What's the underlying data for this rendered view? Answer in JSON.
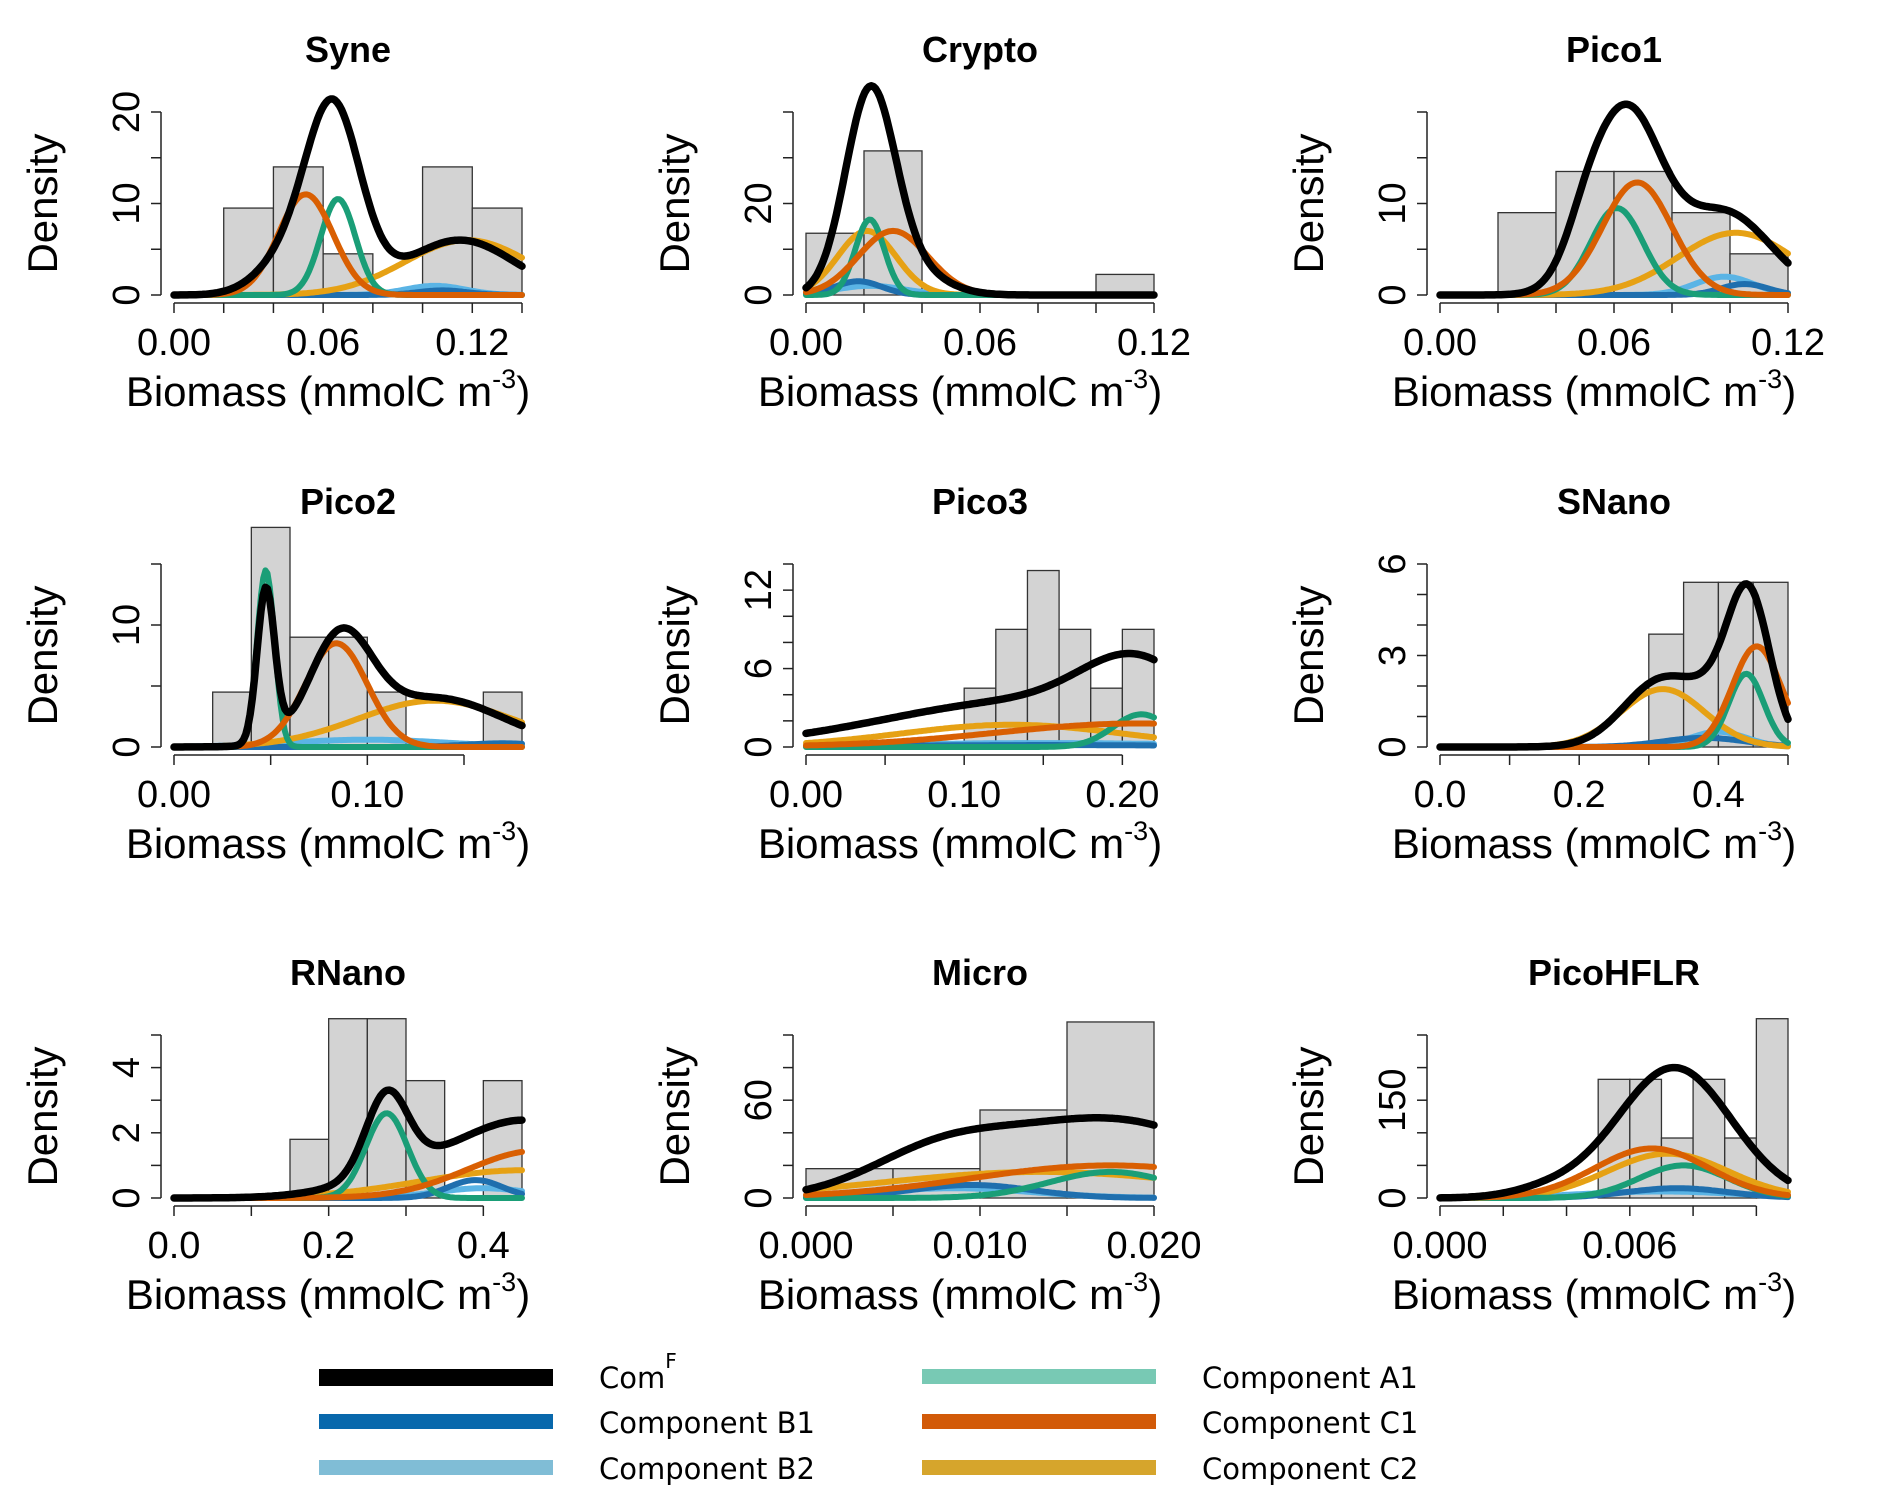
{
  "figure": {
    "panel_count": 9,
    "layout": "3x3 grid with legend below"
  },
  "colors": {
    "histogram_fill": "#d3d3d3",
    "histogram_stroke": "#333333",
    "ComF": "#000000",
    "B1": "#1f6fae",
    "B2": "#5ab4e5",
    "A1": "#1a9e77",
    "C1": "#d95f02",
    "C2": "#e6a114"
  },
  "legend": {
    "items": [
      {
        "key": "ComF",
        "label": "Com",
        "sup": "F",
        "color": "#000000"
      },
      {
        "key": "B1",
        "label": "Component B1",
        "sup": "",
        "color": "#0868ac"
      },
      {
        "key": "B2",
        "label": "Component B2",
        "sup": "",
        "color": "#80bdd6"
      },
      {
        "key": "A1",
        "label": "Component A1",
        "sup": "",
        "color": "#78c9b4"
      },
      {
        "key": "C1",
        "label": "Component C1",
        "sup": "",
        "color": "#d25a08"
      },
      {
        "key": "C2",
        "label": "Component C2",
        "sup": "",
        "color": "#d6a52c"
      }
    ]
  },
  "chart_data": [
    {
      "type": "histogram+density",
      "title": "Syne",
      "xlabel": "Biomass (mmolC  m",
      "xlabel_sup": "-3",
      "xlabel_close": ")",
      "ylabel": "Density",
      "xlim": [
        0,
        0.14
      ],
      "ylim": [
        0,
        20
      ],
      "xticks": [
        0,
        0.02,
        0.04,
        0.06,
        0.08,
        0.1,
        0.12,
        0.14
      ],
      "xtick_labels": [
        {
          "v": 0,
          "t": "0.00"
        },
        {
          "v": 0.06,
          "t": "0.06"
        },
        {
          "v": 0.12,
          "t": "0.12"
        }
      ],
      "yticks": [
        0,
        5,
        10,
        15,
        20
      ],
      "ytick_labels": [
        {
          "v": 0,
          "t": "0"
        },
        {
          "v": 10,
          "t": "10"
        },
        {
          "v": 20,
          "t": "20"
        }
      ],
      "bins": [
        [
          0.02,
          0.04,
          9.5
        ],
        [
          0.04,
          0.06,
          14
        ],
        [
          0.06,
          0.08,
          4.5
        ],
        [
          0.08,
          0.1,
          0
        ],
        [
          0.1,
          0.12,
          14
        ],
        [
          0.12,
          0.14,
          9.5
        ]
      ],
      "components": {
        "C1": [
          [
            11.0,
            0.053,
            0.011
          ]
        ],
        "A1": [
          [
            10.5,
            0.066,
            0.007
          ]
        ],
        "C2": [
          [
            6.0,
            0.118,
            0.025
          ]
        ],
        "B2": [
          [
            1.0,
            0.105,
            0.012
          ]
        ],
        "B1": [
          [
            0.5,
            0.108,
            0.01
          ]
        ]
      },
      "comF": [
        [
          20.0,
          0.064,
          0.011
        ],
        [
          3.5,
          0.045,
          0.012
        ],
        [
          6.0,
          0.115,
          0.022
        ]
      ]
    },
    {
      "type": "histogram+density",
      "title": "Crypto",
      "xlabel": "Biomass (mmolC  m",
      "xlabel_sup": "-3",
      "xlabel_close": ")",
      "ylabel": "Density",
      "xlim": [
        0,
        0.12
      ],
      "ylim": [
        0,
        40
      ],
      "xticks": [
        0,
        0.02,
        0.04,
        0.06,
        0.08,
        0.1,
        0.12
      ],
      "xtick_labels": [
        {
          "v": 0,
          "t": "0.00"
        },
        {
          "v": 0.06,
          "t": "0.06"
        },
        {
          "v": 0.12,
          "t": "0.12"
        }
      ],
      "yticks": [
        0,
        10,
        20,
        30,
        40
      ],
      "ytick_labels": [
        {
          "v": 0,
          "t": "0"
        },
        {
          "v": 20,
          "t": "20"
        }
      ],
      "bins": [
        [
          0.0,
          0.02,
          13.5
        ],
        [
          0.02,
          0.04,
          31.5
        ],
        [
          0.04,
          0.06,
          0
        ],
        [
          0.06,
          0.08,
          0
        ],
        [
          0.08,
          0.1,
          0
        ],
        [
          0.1,
          0.12,
          4.5
        ]
      ],
      "components": {
        "A1": [
          [
            16.5,
            0.022,
            0.005
          ]
        ],
        "C2": [
          [
            14.0,
            0.021,
            0.01
          ]
        ],
        "C1": [
          [
            14.0,
            0.03,
            0.012
          ]
        ],
        "B1": [
          [
            3.0,
            0.018,
            0.008
          ]
        ],
        "B2": [
          [
            2.0,
            0.022,
            0.012
          ]
        ]
      },
      "comF": [
        [
          42.0,
          0.022,
          0.0085
        ],
        [
          6.0,
          0.034,
          0.012
        ]
      ]
    },
    {
      "type": "histogram+density",
      "title": "Pico1",
      "xlabel": "Biomass (mmolC  m",
      "xlabel_sup": "-3",
      "xlabel_close": ")",
      "ylabel": "Density",
      "xlim": [
        0,
        0.12
      ],
      "ylim": [
        0,
        20
      ],
      "xticks": [
        0,
        0.02,
        0.04,
        0.06,
        0.08,
        0.1,
        0.12
      ],
      "xtick_labels": [
        {
          "v": 0,
          "t": "0.00"
        },
        {
          "v": 0.06,
          "t": "0.06"
        },
        {
          "v": 0.12,
          "t": "0.12"
        }
      ],
      "yticks": [
        0,
        5,
        10,
        15,
        20
      ],
      "ytick_labels": [
        {
          "v": 0,
          "t": "0"
        },
        {
          "v": 10,
          "t": "10"
        }
      ],
      "bins": [
        [
          0.02,
          0.04,
          9
        ],
        [
          0.04,
          0.06,
          13.5
        ],
        [
          0.06,
          0.08,
          13.5
        ],
        [
          0.08,
          0.1,
          9
        ],
        [
          0.1,
          0.12,
          4.5
        ]
      ],
      "components": {
        "A1": [
          [
            9.5,
            0.061,
            0.009
          ]
        ],
        "C1": [
          [
            12.3,
            0.068,
            0.012
          ]
        ],
        "C2": [
          [
            6.8,
            0.102,
            0.02
          ]
        ],
        "B2": [
          [
            2.0,
            0.098,
            0.01
          ]
        ],
        "B1": [
          [
            1.2,
            0.105,
            0.008
          ]
        ]
      },
      "comF": [
        [
          19.5,
          0.064,
          0.012
        ],
        [
          9.0,
          0.098,
          0.016
        ],
        [
          3.0,
          0.05,
          0.007
        ]
      ]
    },
    {
      "type": "histogram+density",
      "title": "Pico2",
      "xlabel": "Biomass (mmolC  m",
      "xlabel_sup": "-3",
      "xlabel_close": ")",
      "ylabel": "Density",
      "xlim": [
        0,
        0.18
      ],
      "ylim": [
        0,
        15
      ],
      "xticks": [
        0,
        0.05,
        0.1,
        0.15
      ],
      "xtick_labels": [
        {
          "v": 0,
          "t": "0.00"
        },
        {
          "v": 0.1,
          "t": "0.10"
        }
      ],
      "yticks": [
        0,
        5,
        10,
        15
      ],
      "ytick_labels": [
        {
          "v": 0,
          "t": "0"
        },
        {
          "v": 10,
          "t": "10"
        }
      ],
      "bins": [
        [
          0.02,
          0.04,
          4.5
        ],
        [
          0.04,
          0.06,
          18
        ],
        [
          0.06,
          0.08,
          9
        ],
        [
          0.08,
          0.1,
          9
        ],
        [
          0.1,
          0.12,
          4.5
        ],
        [
          0.12,
          0.14,
          0
        ],
        [
          0.14,
          0.16,
          0
        ],
        [
          0.16,
          0.18,
          4.5
        ]
      ],
      "components": {
        "A1": [
          [
            14.5,
            0.0475,
            0.0045
          ]
        ],
        "C1": [
          [
            8.5,
            0.084,
            0.016
          ]
        ],
        "C2": [
          [
            3.8,
            0.135,
            0.04
          ]
        ],
        "B2": [
          [
            0.6,
            0.1,
            0.04
          ]
        ],
        "B1": [
          [
            0.3,
            0.17,
            0.02
          ]
        ]
      },
      "comF": [
        [
          12.5,
          0.0475,
          0.0045
        ],
        [
          8.2,
          0.086,
          0.016
        ],
        [
          4.0,
          0.135,
          0.035
        ]
      ]
    },
    {
      "type": "histogram+density",
      "title": "Pico3",
      "xlabel": "Biomass (mmolC  m",
      "xlabel_sup": "-3",
      "xlabel_close": ")",
      "ylabel": "Density",
      "xlim": [
        0,
        0.22
      ],
      "ylim": [
        0,
        14
      ],
      "xticks": [
        0,
        0.05,
        0.1,
        0.15,
        0.2
      ],
      "xtick_labels": [
        {
          "v": 0,
          "t": "0.00"
        },
        {
          "v": 0.1,
          "t": "0.10"
        },
        {
          "v": 0.2,
          "t": "0.20"
        }
      ],
      "yticks": [
        0,
        2,
        4,
        6,
        8,
        10,
        12,
        14
      ],
      "ytick_labels": [
        {
          "v": 0,
          "t": "0"
        },
        {
          "v": 6,
          "t": "6"
        },
        {
          "v": 12,
          "t": "12"
        }
      ],
      "bins": [
        [
          0.1,
          0.12,
          4.5
        ],
        [
          0.12,
          0.14,
          9
        ],
        [
          0.14,
          0.16,
          13.5
        ],
        [
          0.16,
          0.18,
          9
        ],
        [
          0.18,
          0.2,
          4.5
        ],
        [
          0.2,
          0.22,
          9
        ]
      ],
      "components": {
        "C2": [
          [
            1.7,
            0.13,
            0.07
          ]
        ],
        "C1": [
          [
            1.8,
            0.21,
            0.09
          ]
        ],
        "A1": [
          [
            2.5,
            0.212,
            0.018
          ]
        ],
        "B2": [
          [
            0.3,
            0.15,
            0.1
          ]
        ],
        "B1": [
          [
            0.15,
            0.15,
            0.1
          ]
        ]
      },
      "comF": [
        [
          4.5,
          0.21,
          0.035
        ],
        [
          3.5,
          0.14,
          0.09
        ]
      ]
    },
    {
      "type": "histogram+density",
      "title": "SNano",
      "xlabel": "Biomass (mmolC  m",
      "xlabel_sup": "-3",
      "xlabel_close": ")",
      "ylabel": "Density",
      "xlim": [
        0,
        0.5
      ],
      "ylim": [
        0,
        6
      ],
      "xticks": [
        0,
        0.1,
        0.2,
        0.3,
        0.4,
        0.5
      ],
      "xtick_labels": [
        {
          "v": 0,
          "t": "0.0"
        },
        {
          "v": 0.2,
          "t": "0.2"
        },
        {
          "v": 0.4,
          "t": "0.4"
        }
      ],
      "yticks": [
        0,
        1,
        2,
        3,
        4,
        5,
        6
      ],
      "ytick_labels": [
        {
          "v": 0,
          "t": "0"
        },
        {
          "v": 3,
          "t": "3"
        },
        {
          "v": 6,
          "t": "6"
        }
      ],
      "bins": [
        [
          0.3,
          0.35,
          3.7
        ],
        [
          0.35,
          0.4,
          5.4
        ],
        [
          0.4,
          0.45,
          5.4
        ],
        [
          0.45,
          0.5,
          5.4
        ]
      ],
      "components": {
        "C2": [
          [
            1.9,
            0.32,
            0.06
          ]
        ],
        "C1": [
          [
            3.3,
            0.455,
            0.035
          ]
        ],
        "A1": [
          [
            2.4,
            0.44,
            0.025
          ]
        ],
        "B2": [
          [
            0.5,
            0.4,
            0.04
          ]
        ],
        "B1": [
          [
            0.3,
            0.38,
            0.06
          ]
        ]
      },
      "comF": [
        [
          4.3,
          0.445,
          0.03
        ],
        [
          2.2,
          0.32,
          0.055
        ],
        [
          1.2,
          0.41,
          0.04
        ]
      ]
    },
    {
      "type": "histogram+density",
      "title": "RNano",
      "xlabel": "Biomass (mmolC  m",
      "xlabel_sup": "-3",
      "xlabel_close": ")",
      "ylabel": "Density",
      "xlim": [
        0,
        0.45
      ],
      "ylim": [
        0,
        5
      ],
      "xticks": [
        0,
        0.1,
        0.2,
        0.3,
        0.4
      ],
      "xtick_labels": [
        {
          "v": 0,
          "t": "0.0"
        },
        {
          "v": 0.2,
          "t": "0.2"
        },
        {
          "v": 0.4,
          "t": "0.4"
        }
      ],
      "yticks": [
        0,
        1,
        2,
        3,
        4,
        5
      ],
      "ytick_labels": [
        {
          "v": 0,
          "t": "0"
        },
        {
          "v": 2,
          "t": "2"
        },
        {
          "v": 4,
          "t": "4"
        }
      ],
      "bins": [
        [
          0.15,
          0.2,
          1.8
        ],
        [
          0.2,
          0.25,
          5.5
        ],
        [
          0.25,
          0.3,
          5.5
        ],
        [
          0.3,
          0.35,
          3.6
        ],
        [
          0.35,
          0.4,
          0
        ],
        [
          0.4,
          0.45,
          3.6
        ]
      ],
      "components": {
        "A1": [
          [
            2.6,
            0.275,
            0.027
          ]
        ],
        "C1": [
          [
            1.45,
            0.47,
            0.09
          ]
        ],
        "C2": [
          [
            0.85,
            0.45,
            0.13
          ]
        ],
        "B1": [
          [
            0.55,
            0.39,
            0.035
          ]
        ],
        "B2": [
          [
            0.3,
            0.4,
            0.06
          ]
        ]
      },
      "comF": [
        [
          2.45,
          0.275,
          0.027
        ],
        [
          2.3,
          0.46,
          0.09
        ],
        [
          0.6,
          0.3,
          0.08
        ]
      ]
    },
    {
      "type": "histogram+density",
      "title": "Micro",
      "xlabel": "Biomass (mmolC  m",
      "xlabel_sup": "-3",
      "xlabel_close": ")",
      "ylabel": "Density",
      "xlim": [
        0,
        0.02
      ],
      "ylim": [
        0,
        100
      ],
      "xticks": [
        0,
        0.005,
        0.01,
        0.015,
        0.02
      ],
      "xtick_labels": [
        {
          "v": 0,
          "t": "0.000"
        },
        {
          "v": 0.01,
          "t": "0.010"
        },
        {
          "v": 0.02,
          "t": "0.020"
        }
      ],
      "yticks": [
        0,
        20,
        40,
        60,
        80,
        100
      ],
      "ytick_labels": [
        {
          "v": 0,
          "t": "0"
        },
        {
          "v": 60,
          "t": "60"
        }
      ],
      "bins": [
        [
          0.0,
          0.005,
          18
        ],
        [
          0.005,
          0.01,
          18
        ],
        [
          0.01,
          0.015,
          54
        ],
        [
          0.015,
          0.02,
          108
        ]
      ],
      "components": {
        "C1": [
          [
            20,
            0.0175,
            0.008
          ]
        ],
        "C2": [
          [
            16,
            0.0135,
            0.009
          ]
        ],
        "A1": [
          [
            16,
            0.0175,
            0.0035
          ]
        ],
        "B1": [
          [
            8,
            0.0095,
            0.0035
          ]
        ],
        "B2": [
          [
            6,
            0.0085,
            0.0045
          ]
        ]
      },
      "comF": [
        [
          48,
          0.0175,
          0.0065
        ],
        [
          22,
          0.0075,
          0.004
        ]
      ]
    },
    {
      "type": "histogram+density",
      "title": "PicoHFLR",
      "xlabel": "Biomass (mmolC  m",
      "xlabel_sup": "-3",
      "xlabel_close": ")",
      "ylabel": "Density",
      "xlim": [
        0,
        0.011
      ],
      "ylim": [
        0,
        250
      ],
      "xticks": [
        0,
        0.002,
        0.004,
        0.006,
        0.008,
        0.01
      ],
      "xtick_labels": [
        {
          "v": 0,
          "t": "0.000"
        },
        {
          "v": 0.006,
          "t": "0.006"
        }
      ],
      "yticks": [
        0,
        50,
        100,
        150,
        200,
        250
      ],
      "ytick_labels": [
        {
          "v": 0,
          "t": "0"
        },
        {
          "v": 150,
          "t": "150"
        }
      ],
      "bins": [
        [
          0.005,
          0.006,
          182
        ],
        [
          0.006,
          0.007,
          182
        ],
        [
          0.007,
          0.008,
          92
        ],
        [
          0.008,
          0.009,
          182
        ],
        [
          0.009,
          0.01,
          92
        ],
        [
          0.01,
          0.011,
          275
        ]
      ],
      "components": {
        "C1": [
          [
            76,
            0.0067,
            0.0018
          ]
        ],
        "C2": [
          [
            68,
            0.0072,
            0.0019
          ]
        ],
        "A1": [
          [
            50,
            0.0077,
            0.0014
          ]
        ],
        "B1": [
          [
            15,
            0.0075,
            0.0016
          ]
        ],
        "B2": [
          [
            10,
            0.007,
            0.0025
          ]
        ]
      },
      "comF": [
        [
          200,
          0.0074,
          0.0018
        ],
        [
          12,
          0.0035,
          0.0012
        ]
      ]
    }
  ]
}
